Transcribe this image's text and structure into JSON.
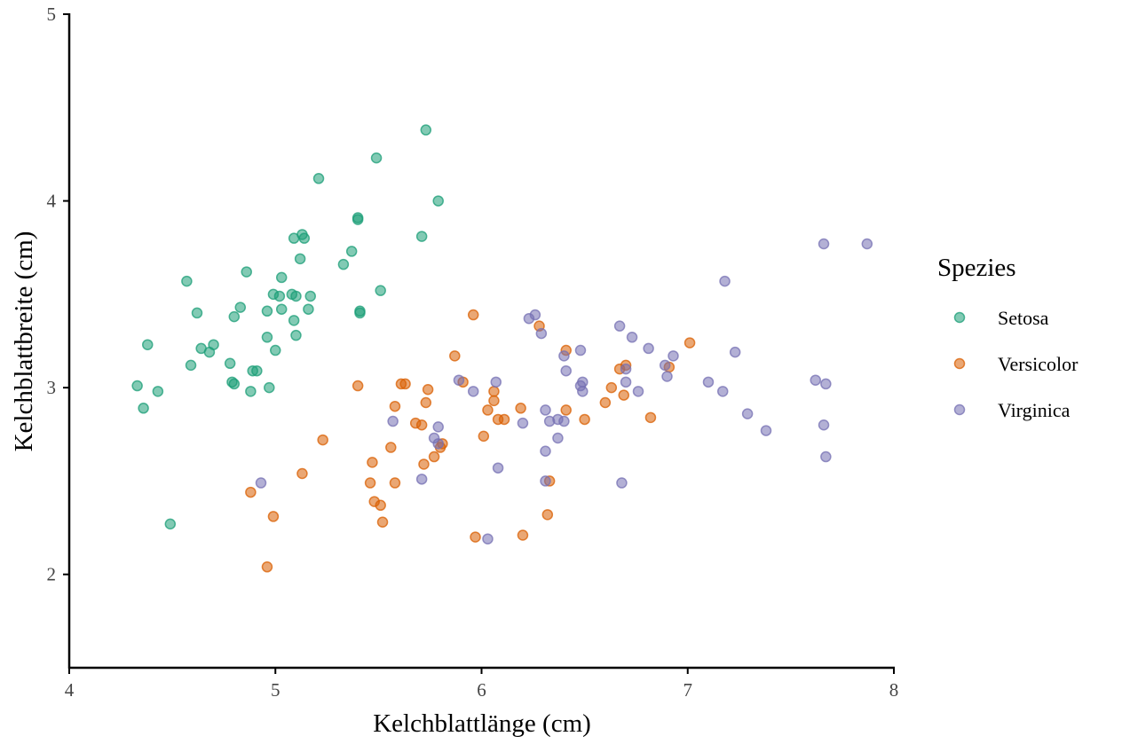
{
  "chart_data": {
    "type": "scatter",
    "title": "",
    "xlabel": "Kelchblattlänge (cm)",
    "ylabel": "Kelchblattbreite (cm)",
    "xlim": [
      4,
      8
    ],
    "ylim": [
      1.5,
      5
    ],
    "xticks": [
      4,
      5,
      6,
      7,
      8
    ],
    "yticks": [
      2,
      3,
      4,
      5
    ],
    "xtick_labels": [
      "4",
      "5",
      "6",
      "7",
      "8"
    ],
    "ytick_labels": [
      "2",
      "3",
      "4",
      "5"
    ],
    "grid": false,
    "legend": {
      "title": "Spezies",
      "placement": "right"
    },
    "series": [
      {
        "name": "Setosa",
        "color": "#1b9e77",
        "x": [
          4.33,
          4.36,
          4.38,
          4.43,
          4.49,
          4.57,
          4.59,
          4.62,
          4.64,
          4.68,
          4.7,
          4.78,
          4.79,
          4.8,
          4.8,
          4.83,
          4.86,
          4.88,
          4.89,
          4.91,
          4.96,
          4.96,
          4.97,
          4.99,
          5.0,
          5.02,
          5.03,
          5.03,
          5.08,
          5.09,
          5.09,
          5.1,
          5.1,
          5.12,
          5.13,
          5.14,
          5.16,
          5.17,
          5.21,
          5.33,
          5.37,
          5.4,
          5.4,
          5.41,
          5.41,
          5.49,
          5.51,
          5.71,
          5.73,
          5.79
        ],
        "y": [
          3.01,
          2.89,
          3.23,
          2.98,
          2.27,
          3.57,
          3.12,
          3.4,
          3.21,
          3.19,
          3.23,
          3.13,
          3.03,
          3.02,
          3.38,
          3.43,
          3.62,
          2.98,
          3.09,
          3.09,
          3.41,
          3.27,
          3.0,
          3.5,
          3.2,
          3.49,
          3.42,
          3.59,
          3.5,
          3.36,
          3.8,
          3.28,
          3.49,
          3.69,
          3.82,
          3.8,
          3.42,
          3.49,
          4.12,
          3.66,
          3.73,
          3.91,
          3.9,
          3.41,
          3.4,
          4.23,
          3.52,
          3.81,
          4.38,
          4.0
        ]
      },
      {
        "name": "Versicolor",
        "color": "#d95f02",
        "x": [
          4.88,
          4.96,
          4.99,
          5.13,
          5.23,
          5.4,
          5.46,
          5.47,
          5.48,
          5.51,
          5.52,
          5.56,
          5.58,
          5.58,
          5.61,
          5.63,
          5.68,
          5.71,
          5.72,
          5.73,
          5.74,
          5.77,
          5.8,
          5.81,
          5.87,
          5.91,
          5.96,
          5.97,
          6.01,
          6.03,
          6.06,
          6.06,
          6.08,
          6.11,
          6.19,
          6.2,
          6.28,
          6.32,
          6.33,
          6.41,
          6.41,
          6.5,
          6.6,
          6.63,
          6.67,
          6.69,
          6.7,
          6.82,
          6.91,
          7.01
        ],
        "y": [
          2.44,
          2.04,
          2.31,
          2.54,
          2.72,
          3.01,
          2.49,
          2.6,
          2.39,
          2.37,
          2.28,
          2.68,
          2.49,
          2.9,
          3.02,
          3.02,
          2.81,
          2.8,
          2.59,
          2.92,
          2.99,
          2.63,
          2.68,
          2.7,
          3.17,
          3.03,
          3.39,
          2.2,
          2.74,
          2.88,
          2.93,
          2.98,
          2.83,
          2.83,
          2.89,
          2.21,
          3.33,
          2.32,
          2.5,
          3.2,
          2.88,
          2.83,
          2.92,
          3.0,
          3.1,
          2.96,
          3.12,
          2.84,
          3.11,
          3.24
        ]
      },
      {
        "name": "Virginica",
        "color": "#7570b3",
        "x": [
          4.93,
          5.57,
          5.71,
          5.77,
          5.79,
          5.79,
          5.89,
          5.96,
          6.03,
          6.07,
          6.08,
          6.2,
          6.23,
          6.26,
          6.29,
          6.31,
          6.31,
          6.31,
          6.33,
          6.37,
          6.37,
          6.4,
          6.4,
          6.41,
          6.48,
          6.48,
          6.49,
          6.49,
          6.67,
          6.68,
          6.7,
          6.7,
          6.73,
          6.76,
          6.81,
          6.89,
          6.9,
          6.93,
          7.1,
          7.17,
          7.18,
          7.23,
          7.29,
          7.38,
          7.62,
          7.66,
          7.67,
          7.66,
          7.67,
          7.87
        ],
        "y": [
          2.49,
          2.82,
          2.51,
          2.73,
          2.7,
          2.79,
          3.04,
          2.98,
          2.19,
          3.03,
          2.57,
          2.81,
          3.37,
          3.39,
          3.29,
          2.5,
          2.66,
          2.88,
          2.82,
          2.73,
          2.83,
          2.82,
          3.17,
          3.09,
          3.2,
          3.01,
          2.98,
          3.03,
          3.33,
          2.49,
          3.1,
          3.03,
          3.27,
          2.98,
          3.21,
          3.12,
          3.06,
          3.17,
          3.03,
          2.98,
          3.57,
          3.19,
          2.86,
          2.77,
          3.04,
          3.77,
          3.02,
          2.8,
          2.63,
          3.77
        ]
      }
    ]
  }
}
